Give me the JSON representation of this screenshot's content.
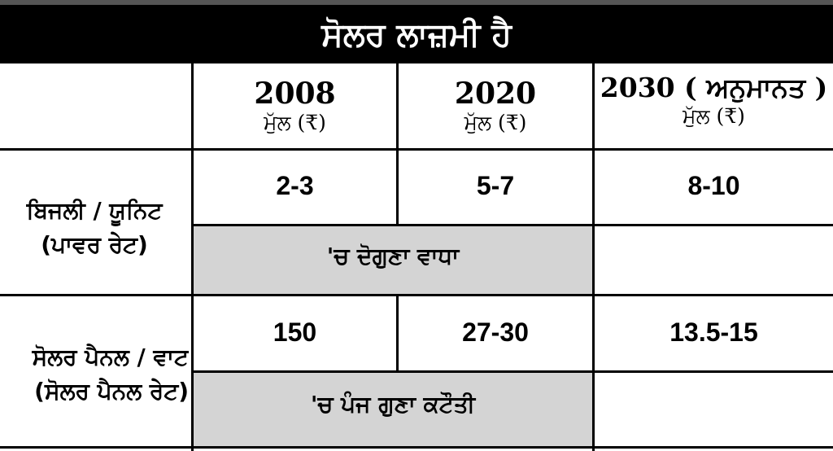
{
  "title": "ਸੋਲਰ ਲਾਜ਼ਮੀ ਹੈ",
  "columns": [
    {
      "year": "2008",
      "unit": "ਮੁੱਲ (₹)"
    },
    {
      "year": "2020",
      "unit": "ਮੁੱਲ (₹)"
    },
    {
      "year": "2030 ( ਅਨੁਮਾਨਤ )",
      "unit": "ਮੁੱਲ (₹)"
    }
  ],
  "rows": [
    {
      "label_line1": "ਬਿਜਲੀ / ਯੂਨਿਟ",
      "label_line2": "(ਪਾਵਰ ਰੇਟ)",
      "values": [
        "2-3",
        "5-7",
        "8-10"
      ],
      "note": "'ਚ ਦੋਗੁਣਾ ਵਾਧਾ"
    },
    {
      "label_line1": "ਸੋਲਰ ਪੈਨਲ / ਵਾਟ",
      "label_line2": "(ਸੋਲਰ ਪੈਨਲ ਰੇਟ)",
      "values": [
        "150",
        "27-30",
        "13.5-15"
      ],
      "note": "'ਚ ਪੰਜ ਗੁਣਾ ਕਟੌਤੀ"
    }
  ],
  "colors": {
    "header_bg": "#000000",
    "note_bg": "#d4d4d4",
    "text": "#000000"
  }
}
